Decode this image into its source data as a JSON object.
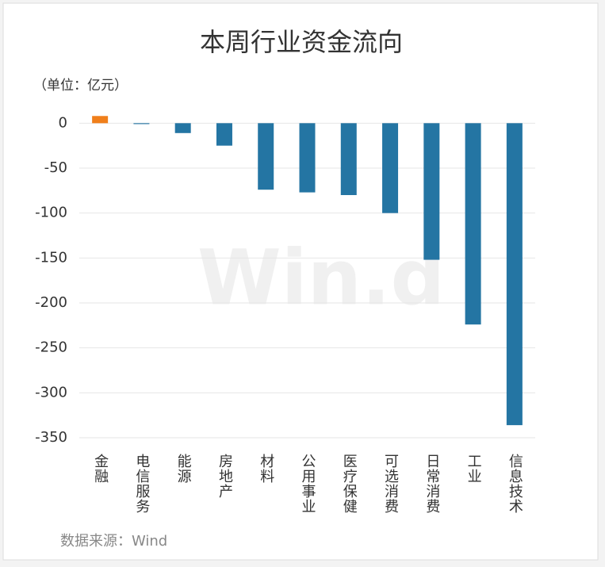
{
  "chart_data": {
    "type": "bar",
    "title": "本周行业资金流向",
    "unit_label": "（单位：亿元）",
    "source": "数据来源：Wind",
    "watermark": "Win.d",
    "categories": [
      "金融",
      "电信服务",
      "能源",
      "房地产",
      "材料",
      "公用事业",
      "医疗保健",
      "可选消费",
      "日常消费",
      "工业",
      "信息技术"
    ],
    "values": [
      8,
      -1,
      -11,
      -25,
      -74,
      -77,
      -80,
      -100,
      -152,
      -224,
      -336
    ],
    "colors": [
      "#f07f1b",
      "#2475a3",
      "#2475a3",
      "#2475a3",
      "#2475a3",
      "#2475a3",
      "#2475a3",
      "#2475a3",
      "#2475a3",
      "#2475a3",
      "#2475a3"
    ],
    "ylim": [
      -350,
      10
    ],
    "yticks": [
      0,
      -50,
      -100,
      -150,
      -200,
      -250,
      -300,
      -350
    ],
    "grid": true
  }
}
